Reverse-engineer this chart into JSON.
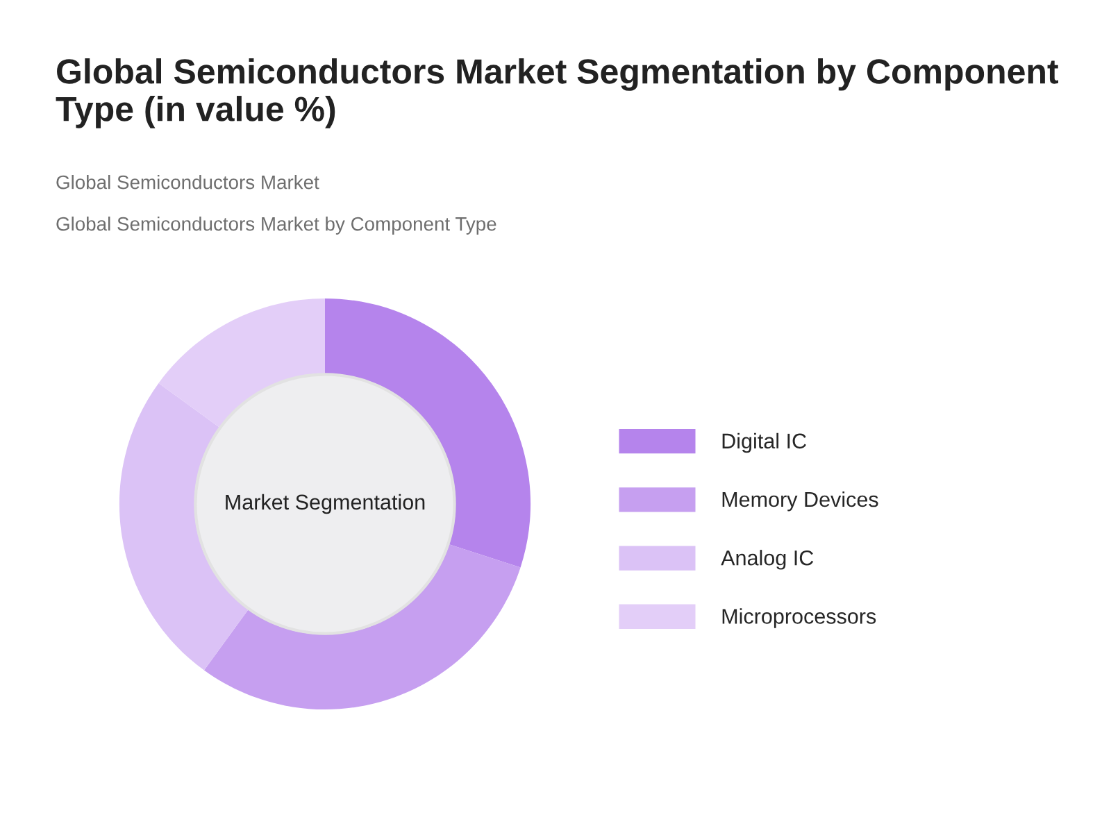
{
  "chart_data": {
    "type": "donut",
    "title": "Global Semiconductors Market Segmentation by Component Type (in value %)",
    "subtitle": "Global Semiconductors Market",
    "annotations": [
      "Global Semiconductors Market by Component Type",
      "Market Segmentation"
    ],
    "categories": [
      "Digital IC",
      "Memory Devices",
      "Analog IC",
      "Microprocessors"
    ],
    "values": [
      30,
      30,
      25,
      15
    ],
    "colors": [
      "#b584ec",
      "#c69ff0",
      "#dbc2f6",
      "#e3cef8"
    ],
    "legend": "right"
  }
}
